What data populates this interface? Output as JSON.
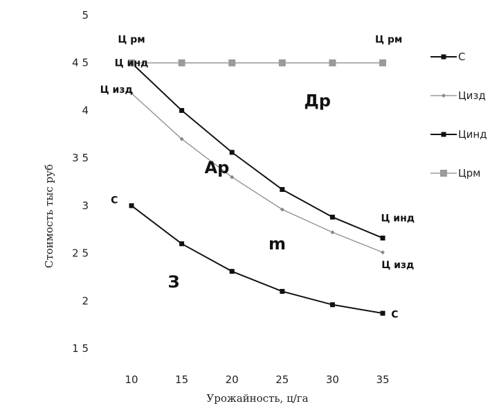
{
  "chart_data": {
    "type": "line",
    "xlabel": "Урожайность, ц/га",
    "ylabel": "Стоимость тыс руб",
    "x": [
      10,
      15,
      20,
      25,
      30,
      35
    ],
    "x_ticks": [
      "10",
      "15",
      "20",
      "25",
      "30",
      "35"
    ],
    "ylim": [
      1.5,
      5
    ],
    "y_ticks": [
      {
        "value": 5,
        "label": "5"
      },
      {
        "value": 4.5,
        "label": "4 5"
      },
      {
        "value": 4,
        "label": "4"
      },
      {
        "value": 3.5,
        "label": "3 5"
      },
      {
        "value": 3,
        "label": "3"
      },
      {
        "value": 2.5,
        "label": "2 5"
      },
      {
        "value": 2,
        "label": "2"
      },
      {
        "value": 1.5,
        "label": "1 5"
      }
    ],
    "grid": false,
    "legend_position": "right",
    "series": [
      {
        "name": "С",
        "values": [
          3.0,
          2.6,
          2.31,
          2.1,
          1.96,
          1.87
        ],
        "color": "#111111",
        "marker": "square-small",
        "stroke_width": 2
      },
      {
        "name": "Цизд",
        "values": [
          4.18,
          3.7,
          3.3,
          2.96,
          2.72,
          2.51
        ],
        "color": "#888888",
        "marker": "diamond-small",
        "stroke_width": 1.3
      },
      {
        "name": "Цинд",
        "values": [
          4.5,
          4.0,
          3.56,
          3.17,
          2.88,
          2.66
        ],
        "color": "#111111",
        "marker": "square-small",
        "stroke_width": 2
      },
      {
        "name": "Црм",
        "values": [
          4.5,
          4.5,
          4.5,
          4.5,
          4.5,
          4.5
        ],
        "color": "#9a9a9a",
        "marker": "square-large",
        "stroke_width": 1.5
      }
    ],
    "annotations": [
      {
        "text": "Ц рм",
        "x": 10,
        "y": 4.75,
        "style": "small",
        "align": "middle"
      },
      {
        "text": "Ц инд",
        "x": 10,
        "y": 4.5,
        "style": "small",
        "align": "middle"
      },
      {
        "text": "Ц изд",
        "x": 8.5,
        "y": 4.22,
        "style": "small",
        "align": "middle"
      },
      {
        "text": "С",
        "x": 8.3,
        "y": 3.06,
        "style": "small",
        "align": "middle"
      },
      {
        "text": "Ц рм",
        "x": 35.6,
        "y": 4.75,
        "style": "small",
        "align": "middle"
      },
      {
        "text": "Ц инд",
        "x": 36.5,
        "y": 2.87,
        "style": "small",
        "align": "middle"
      },
      {
        "text": "Ц изд",
        "x": 36.5,
        "y": 2.38,
        "style": "small",
        "align": "middle"
      },
      {
        "text": "С",
        "x": 36.2,
        "y": 1.86,
        "style": "small",
        "align": "middle"
      },
      {
        "text": "Др",
        "x": 28.5,
        "y": 4.1,
        "style": "big",
        "align": "middle"
      },
      {
        "text": "Ар",
        "x": 18.5,
        "y": 3.4,
        "style": "big",
        "align": "middle"
      },
      {
        "text": "m",
        "x": 24.5,
        "y": 2.6,
        "style": "big",
        "align": "middle"
      },
      {
        "text": "З",
        "x": 14.2,
        "y": 2.2,
        "style": "big",
        "align": "middle"
      }
    ]
  }
}
